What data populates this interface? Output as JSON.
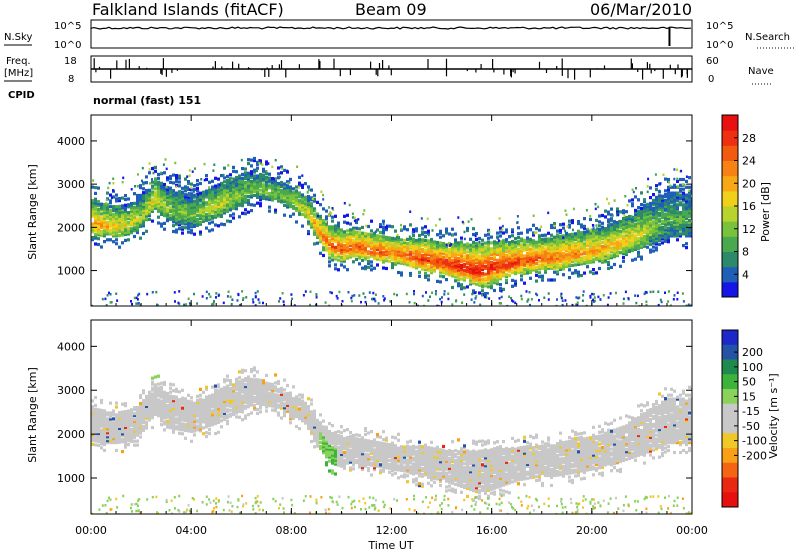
{
  "header": {
    "station": "Falkland Islands (fitACF)",
    "beam": "Beam 09",
    "date": "06/Mar/2010"
  },
  "aux_panels": {
    "nsky_label": "N.Sky",
    "nsky_ticks": [
      "10^5",
      "10^0"
    ],
    "nsearch_label": "N.Search",
    "nsearch_ticks": [
      "10^5",
      "10^0"
    ],
    "freq_label_1": "Freq.",
    "freq_label_2": "[MHz]",
    "freq_ticks": [
      "18",
      "8"
    ],
    "nave_label": "Nave",
    "nave_ticks": [
      "60",
      "0"
    ],
    "cpid_label": "CPID",
    "cpid_value": "normal (fast) 151"
  },
  "chart_data": [
    {
      "type": "heatmap",
      "name": "power-panel",
      "ylabel": "Slant Range [km]",
      "xlabel": "",
      "ylim": [
        180,
        4600
      ],
      "yticks": [
        1000,
        2000,
        3000,
        4000
      ],
      "x_hours": [
        0,
        24
      ],
      "colorbar": {
        "label": "Power [dB]",
        "range": [
          0,
          32
        ],
        "ticks": [
          4,
          8,
          12,
          16,
          20,
          24,
          28
        ],
        "colors": [
          "#1515e6",
          "#1f5fb8",
          "#2c8a6a",
          "#4aa84f",
          "#78c23c",
          "#b8d22e",
          "#f0d018",
          "#f8a814",
          "#f58212",
          "#f25a10",
          "#ee3010",
          "#e81010"
        ]
      },
      "echo_band": {
        "hours": [
          0,
          0.5,
          1,
          1.5,
          2,
          2.5,
          3,
          3.5,
          4,
          4.5,
          5,
          5.5,
          6,
          6.5,
          7,
          7.5,
          8,
          8.5,
          9,
          9.5,
          10,
          10.5,
          11,
          11.5,
          12,
          12.5,
          13,
          13.5,
          14,
          14.5,
          15,
          15.5,
          16,
          16.5,
          17,
          17.5,
          18,
          18.5,
          19,
          19.5,
          20,
          20.5,
          21,
          21.5,
          22,
          22.5,
          23
        ],
        "lower_km": [
          1800,
          1750,
          1750,
          1800,
          2000,
          2400,
          2100,
          2050,
          2000,
          2100,
          2200,
          2350,
          2500,
          2650,
          2600,
          2550,
          2400,
          2200,
          1700,
          1300,
          1200,
          1300,
          1250,
          1200,
          1150,
          1100,
          1000,
          950,
          900,
          800,
          700,
          600,
          700,
          800,
          900,
          950,
          1000,
          1000,
          1050,
          1100,
          1150,
          1200,
          1300,
          1400,
          1500,
          1600,
          1750
        ],
        "upper_km": [
          2600,
          2500,
          2450,
          2500,
          2700,
          3100,
          2900,
          2800,
          2700,
          2800,
          2950,
          3100,
          3200,
          3250,
          3150,
          3050,
          2900,
          2700,
          2300,
          2000,
          1900,
          1900,
          1850,
          1800,
          1750,
          1700,
          1700,
          1650,
          1600,
          1600,
          1600,
          1600,
          1650,
          1650,
          1650,
          1700,
          1700,
          1750,
          1800,
          1850,
          1900,
          2000,
          2100,
          2250,
          2450,
          2650,
          2800
        ],
        "peak_dB": [
          22,
          20,
          18,
          16,
          14,
          18,
          12,
          12,
          12,
          14,
          16,
          14,
          12,
          12,
          12,
          12,
          14,
          16,
          22,
          26,
          26,
          26,
          26,
          26,
          24,
          26,
          28,
          28,
          28,
          30,
          30,
          30,
          30,
          28,
          28,
          26,
          26,
          24,
          24,
          22,
          22,
          20,
          20,
          18,
          16,
          12,
          10
        ]
      }
    },
    {
      "type": "heatmap",
      "name": "velocity-panel",
      "ylabel": "Slant Range [km]",
      "xlabel": "Time UT",
      "ylim": [
        180,
        4600
      ],
      "yticks": [
        1000,
        2000,
        3000,
        4000
      ],
      "x_hours": [
        0,
        24
      ],
      "xticks": [
        "00:00",
        "04:00",
        "08:00",
        "12:00",
        "16:00",
        "20:00",
        "00:00"
      ],
      "colorbar": {
        "label": "Velocity [m s⁻¹]",
        "tick_labels": [
          "200",
          "100",
          "50",
          "15",
          "-15",
          "-50",
          "-100",
          "-200"
        ],
        "colors": [
          "#1c28c8",
          "#2452a6",
          "#1f8a4e",
          "#3cb43c",
          "#8ad25c",
          "#c8c8c8",
          "#c8c8c8",
          "#f0c828",
          "#f8a018",
          "#f46414",
          "#e82810",
          "#e61010"
        ]
      },
      "dominant_value": "-15 to 15 (ground scatter)",
      "green_streak_hours": [
        9.0,
        9.8
      ],
      "green_top_hours": [
        2.3,
        3.6
      ]
    }
  ]
}
